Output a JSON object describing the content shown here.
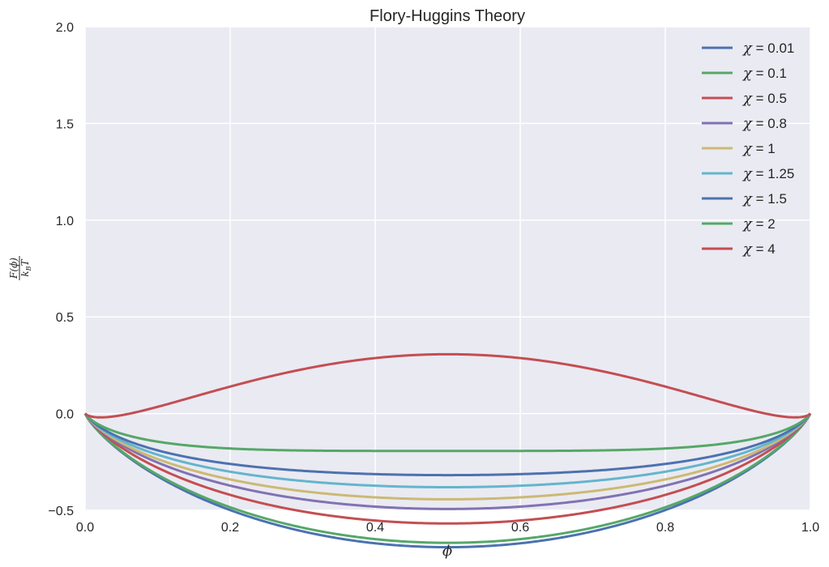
{
  "chart_data": {
    "type": "line",
    "title": "Flory-Huggins Theory",
    "xlabel": "ϕ",
    "ylabel": {
      "numerator": "F(ϕ)",
      "denominator": "k",
      "denominator_subscript": "B",
      "denominator_tail": "T"
    },
    "xlim": [
      0.0,
      1.0
    ],
    "ylim": [
      -0.5,
      2.0
    ],
    "x_ticks": [
      "0.0",
      "0.2",
      "0.4",
      "0.6",
      "0.8",
      "1.0"
    ],
    "y_ticks": [
      "−0.5",
      "0.0",
      "0.5",
      "1.0",
      "1.5",
      "2.0"
    ],
    "grid": true,
    "legend_position": "top-right",
    "legend_symbol": "χ",
    "formula": "phi*ln(phi) + (1-phi)*ln(1-phi) + chi*phi*(1-phi)",
    "series": [
      {
        "name": "χ = 0.01",
        "label_value": "0.01",
        "chi": 0.01,
        "color": "#4C72B0"
      },
      {
        "name": "χ = 0.1",
        "label_value": "0.1",
        "chi": 0.1,
        "color": "#55A868"
      },
      {
        "name": "χ = 0.5",
        "label_value": "0.5",
        "chi": 0.5,
        "color": "#C44E52"
      },
      {
        "name": "χ = 0.8",
        "label_value": "0.8",
        "chi": 0.8,
        "color": "#8172B2"
      },
      {
        "name": "χ = 1",
        "label_value": "1",
        "chi": 1.0,
        "color": "#CCB974"
      },
      {
        "name": "χ = 1.25",
        "label_value": "1.25",
        "chi": 1.25,
        "color": "#64B5CD"
      },
      {
        "name": "χ = 1.5",
        "label_value": "1.5",
        "chi": 1.5,
        "color": "#4C72B0"
      },
      {
        "name": "χ = 2",
        "label_value": "2",
        "chi": 2.0,
        "color": "#55A868"
      },
      {
        "name": "χ = 4",
        "label_value": "4",
        "chi": 4.0,
        "color": "#C44E52"
      }
    ],
    "style": {
      "plot_background": "#EAEAF2",
      "grid_color": "#FFFFFF",
      "text_color": "#262626"
    }
  }
}
